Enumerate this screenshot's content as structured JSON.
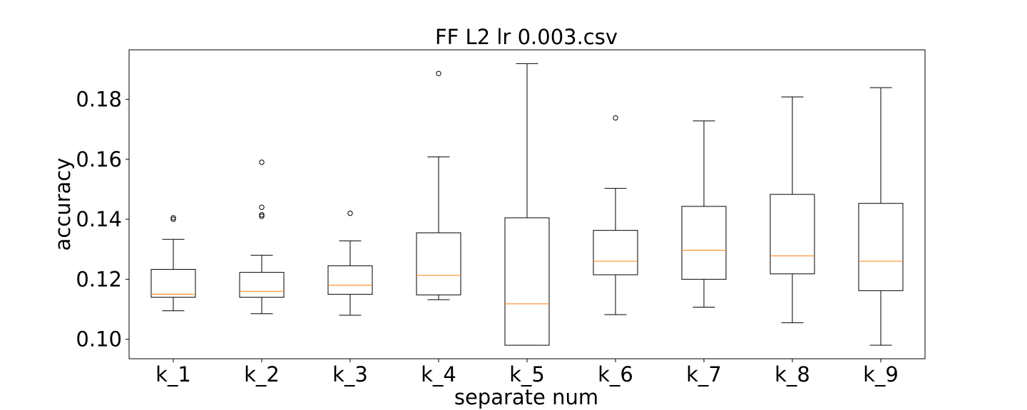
{
  "chart_data": {
    "type": "box",
    "title": "FF L2 lr 0.003.csv",
    "xlabel": "separate num",
    "ylabel": "accuracy",
    "ylim": [
      0.0935,
      0.1965
    ],
    "yticks": [
      0.1,
      0.12,
      0.14,
      0.16,
      0.18
    ],
    "ytick_labels": [
      "0.10",
      "0.12",
      "0.14",
      "0.16",
      "0.18"
    ],
    "categories": [
      "k_1",
      "k_2",
      "k_3",
      "k_4",
      "k_5",
      "k_6",
      "k_7",
      "k_8",
      "k_9"
    ],
    "boxes": [
      {
        "category": "k_1",
        "whisker_low": 0.1095,
        "q1": 0.114,
        "median": 0.115,
        "q3": 0.1233,
        "whisker_high": 0.1333,
        "outliers": [
          0.1405,
          0.14
        ]
      },
      {
        "category": "k_2",
        "whisker_low": 0.1085,
        "q1": 0.114,
        "median": 0.116,
        "q3": 0.1223,
        "whisker_high": 0.128,
        "outliers": [
          0.159,
          0.144,
          0.1415,
          0.141
        ]
      },
      {
        "category": "k_3",
        "whisker_low": 0.108,
        "q1": 0.115,
        "median": 0.118,
        "q3": 0.1245,
        "whisker_high": 0.1328,
        "outliers": [
          0.142
        ]
      },
      {
        "category": "k_4",
        "whisker_low": 0.1132,
        "q1": 0.1148,
        "median": 0.1213,
        "q3": 0.1355,
        "whisker_high": 0.1608,
        "outliers": [
          0.1886
        ]
      },
      {
        "category": "k_5",
        "whisker_low": 0.098,
        "q1": 0.098,
        "median": 0.1118,
        "q3": 0.1405,
        "whisker_high": 0.1919,
        "outliers": []
      },
      {
        "category": "k_6",
        "whisker_low": 0.1082,
        "q1": 0.1215,
        "median": 0.126,
        "q3": 0.1363,
        "whisker_high": 0.1503,
        "outliers": [
          0.1738
        ]
      },
      {
        "category": "k_7",
        "whisker_low": 0.1107,
        "q1": 0.12,
        "median": 0.1297,
        "q3": 0.1443,
        "whisker_high": 0.1728,
        "outliers": []
      },
      {
        "category": "k_8",
        "whisker_low": 0.1055,
        "q1": 0.1218,
        "median": 0.1278,
        "q3": 0.1483,
        "whisker_high": 0.1808,
        "outliers": []
      },
      {
        "category": "k_9",
        "whisker_low": 0.098,
        "q1": 0.1162,
        "median": 0.126,
        "q3": 0.1453,
        "whisker_high": 0.1839,
        "outliers": []
      }
    ],
    "colors": {
      "box": "#000000",
      "median": "#ff7f0e",
      "outlier": "#000000",
      "background": "#ffffff"
    },
    "grid": false,
    "legend": "none"
  }
}
